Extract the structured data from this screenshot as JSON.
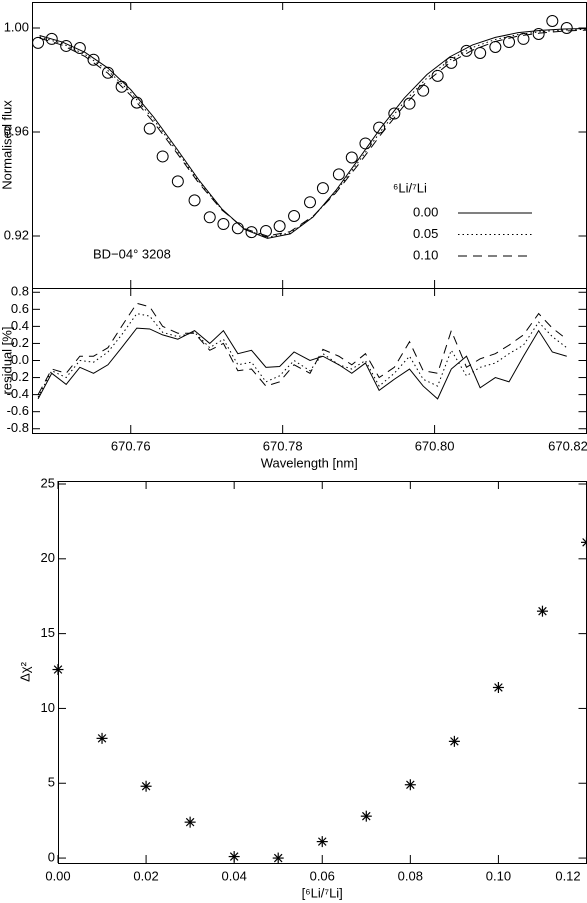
{
  "chart_data": [
    {
      "type": "line",
      "ylabel": "Normalised flux",
      "annotation": "BD−04° 3208",
      "legend_title": "⁶Li/⁷Li",
      "xlim": [
        670.747,
        670.82
      ],
      "ylim": [
        0.9,
        1.01
      ],
      "yticks": [
        0.92,
        0.96,
        {
          "value": 1.0,
          "label": "1.00"
        }
      ],
      "series": [
        {
          "style": "circle",
          "color": "#000000",
          "x": [
            670.7478,
            670.7496,
            670.7515,
            670.7533,
            670.7551,
            670.757,
            670.7588,
            670.7608,
            670.7625,
            670.7642,
            670.7662,
            670.7684,
            670.7704,
            670.7722,
            670.7741,
            670.7759,
            670.7778,
            670.7796,
            670.7815,
            670.7836,
            670.7853,
            670.7874,
            670.7891,
            670.7909,
            670.7927,
            670.7947,
            670.7967,
            670.7985,
            670.8004,
            670.8022,
            670.8042,
            670.806,
            670.808,
            670.8098,
            670.8117,
            670.8137,
            670.8155,
            670.8174
          ],
          "values": [
            0.9943,
            0.9958,
            0.9931,
            0.9923,
            0.9878,
            0.9828,
            0.9774,
            0.9713,
            0.9613,
            0.9506,
            0.941,
            0.9337,
            0.9272,
            0.9246,
            0.923,
            0.9215,
            0.9219,
            0.9238,
            0.9277,
            0.933,
            0.9384,
            0.9437,
            0.9502,
            0.9556,
            0.9617,
            0.9671,
            0.9709,
            0.9759,
            0.9816,
            0.9866,
            0.9912,
            0.9904,
            0.9927,
            0.9946,
            0.9958,
            0.9977,
            1.0027,
            1.0
          ]
        },
        {
          "name": "0.00",
          "style": "solid",
          "color": "#000000",
          "x": [
            670.748,
            670.751,
            670.754,
            670.757,
            670.76,
            670.763,
            670.766,
            670.769,
            670.772,
            670.775,
            670.778,
            670.781,
            670.784,
            670.787,
            670.79,
            670.793,
            670.796,
            670.799,
            670.802,
            670.805,
            670.808,
            670.811,
            670.814,
            670.817,
            670.82
          ],
          "values": [
            0.9971,
            0.9946,
            0.9906,
            0.9846,
            0.9763,
            0.9658,
            0.9538,
            0.9414,
            0.9304,
            0.9225,
            0.9191,
            0.9208,
            0.9273,
            0.9375,
            0.9496,
            0.9619,
            0.973,
            0.9821,
            0.9889,
            0.9935,
            0.9964,
            0.9982,
            0.9991,
            0.9996,
            0.9998
          ]
        },
        {
          "name": "0.05",
          "style": "dotted",
          "color": "#000000",
          "x": [
            670.748,
            670.751,
            670.754,
            670.757,
            670.76,
            670.763,
            670.766,
            670.769,
            670.772,
            670.775,
            670.778,
            670.781,
            670.784,
            670.787,
            670.79,
            670.793,
            670.796,
            670.799,
            670.802,
            670.805,
            670.808,
            670.811,
            670.814,
            670.817,
            670.82
          ],
          "values": [
            0.9966,
            0.994,
            0.9898,
            0.9836,
            0.9752,
            0.9648,
            0.953,
            0.9408,
            0.9302,
            0.9226,
            0.9195,
            0.9212,
            0.9274,
            0.937,
            0.9486,
            0.9606,
            0.9716,
            0.9808,
            0.9877,
            0.9925,
            0.9956,
            0.9975,
            0.9986,
            0.9992,
            0.9995
          ]
        },
        {
          "name": "0.10",
          "style": "dashed",
          "color": "#000000",
          "x": [
            670.748,
            670.751,
            670.754,
            670.757,
            670.76,
            670.763,
            670.766,
            670.769,
            670.772,
            670.775,
            670.778,
            670.781,
            670.784,
            670.787,
            670.79,
            670.793,
            670.796,
            670.799,
            670.802,
            670.805,
            670.808,
            670.811,
            670.814,
            670.817,
            670.82
          ],
          "values": [
            0.9961,
            0.9934,
            0.989,
            0.9826,
            0.9741,
            0.9638,
            0.9522,
            0.9402,
            0.93,
            0.9228,
            0.92,
            0.9217,
            0.9276,
            0.9366,
            0.9476,
            0.9593,
            0.9702,
            0.9795,
            0.9866,
            0.9915,
            0.9948,
            0.9969,
            0.9981,
            0.9988,
            0.9992
          ]
        }
      ]
    },
    {
      "type": "line",
      "ylabel": "residual [%]",
      "xlabel": "Wavelength [nm]",
      "xlim": [
        670.747,
        670.82
      ],
      "xticks": [
        670.76,
        670.78,
        {
          "value": 670.8,
          "label": "670.80"
        },
        670.82
      ],
      "ylim": [
        -0.85,
        0.85
      ],
      "yticks": [
        -0.8,
        -0.6,
        -0.4,
        -0.2,
        {
          "value": 0,
          "label": "0.0"
        },
        0.2,
        0.4,
        0.6,
        0.8
      ],
      "x": [
        670.7478,
        670.7496,
        670.7515,
        670.7533,
        670.7551,
        670.757,
        670.7588,
        670.7608,
        670.7625,
        670.7642,
        670.7662,
        670.7684,
        670.7704,
        670.7722,
        670.7741,
        670.7759,
        670.7778,
        670.7796,
        670.7815,
        670.7836,
        670.7853,
        670.7874,
        670.7891,
        670.7909,
        670.7927,
        670.7947,
        670.7967,
        670.7985,
        670.8004,
        670.8022,
        670.8042,
        670.806,
        670.808,
        670.8098,
        670.8117,
        670.8137,
        670.8155,
        670.8174
      ],
      "series": [
        {
          "style": "solid",
          "color": "#000000",
          "values": [
            -0.45,
            -0.15,
            -0.28,
            -0.08,
            -0.15,
            -0.05,
            0.15,
            0.38,
            0.37,
            0.3,
            0.25,
            0.35,
            0.2,
            0.35,
            0.08,
            0.12,
            -0.08,
            -0.07,
            0.1,
            0.0,
            0.05,
            -0.05,
            -0.15,
            -0.03,
            -0.35,
            -0.22,
            -0.1,
            -0.3,
            -0.45,
            -0.1,
            0.05,
            -0.32,
            -0.2,
            -0.25,
            0.05,
            0.35,
            0.1,
            0.05
          ]
        },
        {
          "style": "dotted",
          "color": "#000000",
          "values": [
            -0.43,
            -0.12,
            -0.2,
            0.0,
            -0.02,
            0.1,
            0.3,
            0.55,
            0.52,
            0.33,
            0.28,
            0.33,
            0.15,
            0.25,
            -0.05,
            -0.02,
            -0.25,
            -0.18,
            0.0,
            -0.12,
            0.08,
            -0.05,
            -0.1,
            0.0,
            -0.3,
            -0.15,
            0.05,
            -0.22,
            -0.3,
            0.12,
            -0.18,
            -0.08,
            -0.03,
            0.08,
            0.18,
            0.45,
            0.28,
            0.15
          ]
        },
        {
          "style": "dashed",
          "color": "#000000",
          "values": [
            -0.4,
            -0.1,
            -0.15,
            0.05,
            0.05,
            0.15,
            0.4,
            0.67,
            0.63,
            0.4,
            0.32,
            0.32,
            0.12,
            0.2,
            -0.12,
            -0.1,
            -0.3,
            -0.25,
            -0.05,
            -0.15,
            0.13,
            0.05,
            -0.05,
            0.08,
            -0.2,
            -0.08,
            0.22,
            -0.12,
            -0.15,
            0.35,
            -0.08,
            0.02,
            0.08,
            0.18,
            0.3,
            0.55,
            0.38,
            0.25
          ]
        }
      ]
    },
    {
      "type": "scatter",
      "ylabel": "Δχ²",
      "xlabel": "[⁶Li/⁷Li]",
      "xlim": [
        0,
        0.12
      ],
      "xticks": [
        {
          "value": 0,
          "label": "0.00"
        },
        0.02,
        0.04,
        0.06,
        0.08,
        {
          "value": 0.1,
          "label": "0.10"
        },
        0.12
      ],
      "ylim": [
        -0.33,
        25.2
      ],
      "yticks": [
        0,
        5,
        10,
        15,
        20,
        25
      ],
      "color": "#000000",
      "x": [
        0,
        0.01,
        0.02,
        0.03,
        0.04,
        0.05,
        0.06,
        0.07,
        0.08,
        0.09,
        0.1,
        0.11,
        0.12
      ],
      "values": [
        12.6,
        8.0,
        4.8,
        2.4,
        0.1,
        0.0,
        1.1,
        2.8,
        4.9,
        7.8,
        11.4,
        16.5,
        21.1
      ]
    }
  ]
}
